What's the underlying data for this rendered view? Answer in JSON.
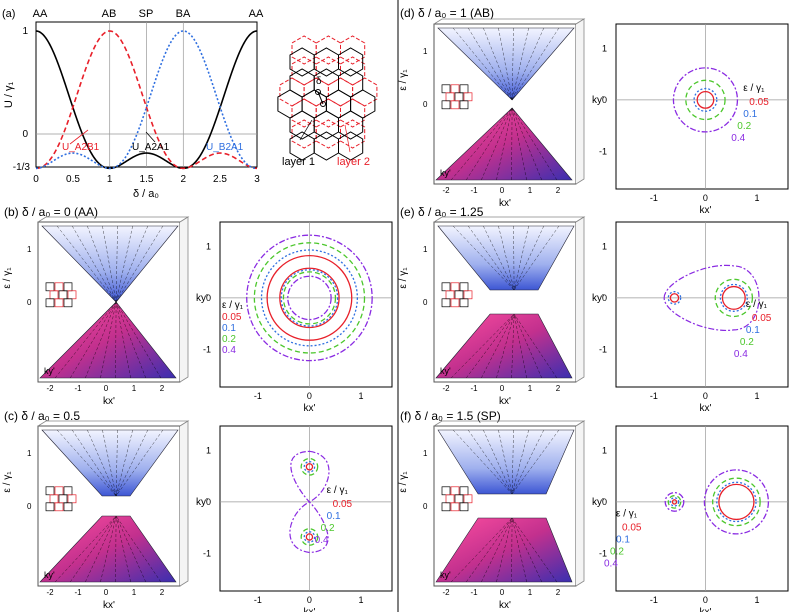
{
  "colors": {
    "red": "#e8202a",
    "blue": "#2f6fe0",
    "green": "#4cc72c",
    "purple": "#8a2be2",
    "black": "#000000"
  },
  "panel_a": {
    "label": "(a)",
    "top_labels": [
      "AA",
      "AB",
      "SP",
      "BA",
      "AA"
    ],
    "ylabel": "U / γ₁",
    "xlabel": "δ / a₀",
    "yticks": [
      "1",
      "2/3",
      "0",
      "-1/3"
    ],
    "xticks": [
      "0",
      "0.5",
      "1",
      "1.5",
      "2",
      "2.5",
      "3"
    ],
    "curve_labels": {
      "a2b1": "U_A2B1",
      "a2a1": "U_A2A1",
      "b2a1": "U_B2A1"
    },
    "lattice_labels": {
      "layer1": "layer 1",
      "layer2": "layer 2",
      "delta": "δ"
    }
  },
  "chart_data": {
    "type": "line",
    "title": "(a)",
    "xlabel": "δ / a₀",
    "ylabel": "U / γ₁",
    "xlim": [
      0,
      3
    ],
    "ylim": [
      -0.333,
      1
    ],
    "series": [
      {
        "name": "U_A2A1",
        "x": [
          0,
          0.25,
          0.5,
          0.75,
          1,
          1.25,
          1.5,
          1.75,
          2,
          2.25,
          2.5,
          2.75,
          3
        ],
        "values": [
          1,
          0.82,
          0.44,
          0.07,
          -0.11,
          -0.11,
          0.0,
          -0.11,
          -0.11,
          0.07,
          0.44,
          0.82,
          1
        ]
      },
      {
        "name": "U_A2B1",
        "x": [
          0,
          0.25,
          0.5,
          0.75,
          1,
          1.25,
          1.5,
          1.75,
          2,
          2.25,
          2.5,
          2.75,
          3
        ],
        "values": [
          -0.11,
          0.07,
          0.44,
          0.82,
          1,
          0.82,
          0.44,
          0.07,
          -0.11,
          -0.11,
          0.0,
          -0.11,
          -0.11
        ]
      },
      {
        "name": "U_B2A1",
        "x": [
          0,
          0.25,
          0.5,
          0.75,
          1,
          1.25,
          1.5,
          1.75,
          2,
          2.25,
          2.5,
          2.75,
          3
        ],
        "values": [
          -0.11,
          -0.11,
          0.0,
          -0.11,
          -0.11,
          0.07,
          0.44,
          0.82,
          1,
          0.82,
          0.44,
          0.07,
          -0.11
        ]
      }
    ]
  },
  "panels": [
    {
      "id": "b",
      "title": "(b) δ / a₀ = 0 (AA)",
      "eps_label": "ε / γ₁",
      "legend": [
        "0.05",
        "0.1",
        "0.2",
        "0.4"
      ]
    },
    {
      "id": "c",
      "title": "(c) δ / a₀ = 0.5",
      "eps_label": "ε / γ₁",
      "legend": [
        "0.05",
        "0.1",
        "0.2",
        "0.4"
      ]
    },
    {
      "id": "d",
      "title": "(d) δ / a₀ = 1 (AB)",
      "eps_label": "ε / γ₁",
      "legend": [
        "0.05",
        "0.1",
        "0.2",
        "0.4"
      ]
    },
    {
      "id": "e",
      "title": "(e) δ / a₀ = 1.25",
      "eps_label": "ε / γ₁",
      "legend": [
        "0.05",
        "0.1",
        "0.2",
        "0.4"
      ]
    },
    {
      "id": "f",
      "title": "(f) δ / a₀ = 1.5 (SP)",
      "eps_label": "ε / γ₁",
      "legend": [
        "0.05",
        "0.1",
        "0.2",
        "0.4"
      ]
    }
  ],
  "axes": {
    "kx": "kx'",
    "ky": "ky'",
    "eps_axis": "ε / γ₁",
    "band_yticks": [
      "1",
      "0",
      "-1"
    ],
    "band_xticks": [
      "-2",
      "-1",
      "0",
      "1",
      "2"
    ],
    "contour_ticks": [
      "-1",
      "0",
      "1"
    ]
  }
}
